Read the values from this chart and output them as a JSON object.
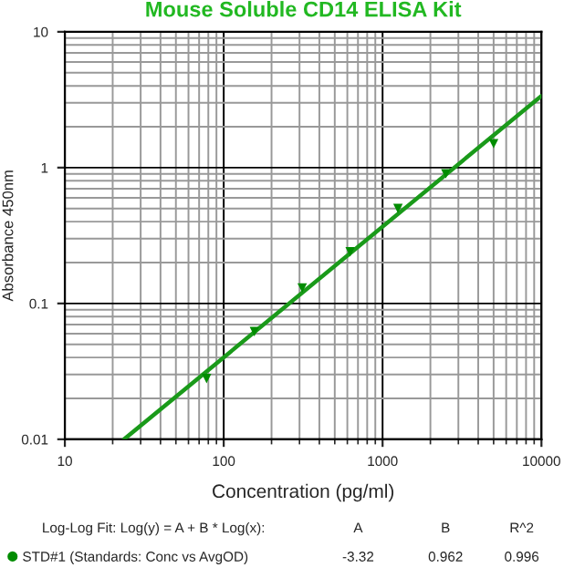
{
  "chart_data": {
    "type": "scatter",
    "title": "Mouse Soluble CD14 ELISA Kit",
    "xlabel": "Concentration (pg/ml)",
    "ylabel": "Absorbance 450nm",
    "log": "xy",
    "xlim": [
      10,
      10000
    ],
    "ylim": [
      0.01,
      10
    ],
    "xticks": [
      10,
      100,
      1000,
      10000
    ],
    "yticks": [
      0.01,
      0.1,
      1,
      10
    ],
    "grid": true,
    "legend": "bottom",
    "series": [
      {
        "name": "STD#1 (Standards: Conc vs AvgOD)",
        "color": "#008c00",
        "marker": "triangle",
        "x": [
          78,
          156,
          312,
          625,
          1250,
          2500,
          5000
        ],
        "values": [
          0.028,
          0.062,
          0.13,
          0.24,
          0.5,
          0.9,
          1.5
        ]
      },
      {
        "type": "line",
        "color": "#1a9a1a",
        "marker": "none",
        "x": [
          23.6,
          10000
        ],
        "values": [
          0.01,
          3.37
        ]
      }
    ],
    "annotations": [
      "Log-Log Fit: Log(y) = A + B * Log(x):",
      "A",
      "B",
      "R^2",
      "-3.32",
      "0.962",
      "0.996"
    ]
  }
}
